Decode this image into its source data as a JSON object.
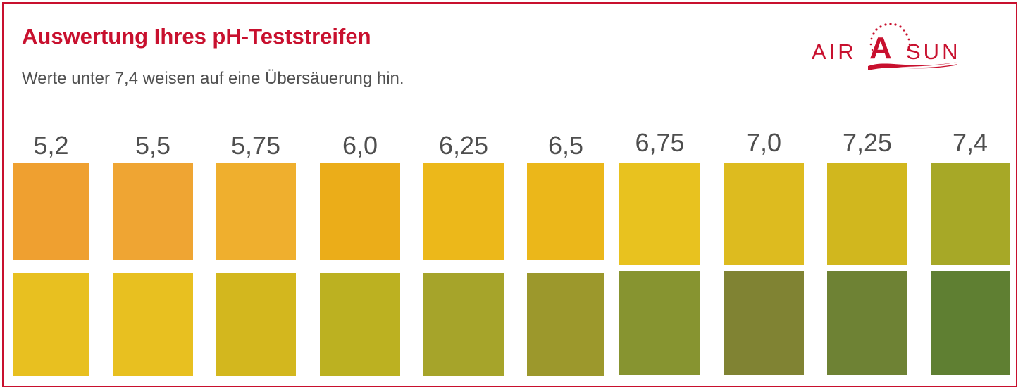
{
  "header": {
    "title": "Auswertung Ihres pH-Teststreifen",
    "subtitle": "Werte unter 7,4 weisen auf eine Übersäuerung hin."
  },
  "logo": {
    "left": "AIR",
    "middle": "A",
    "right": "SUN"
  },
  "chart_data": {
    "type": "table",
    "columns": [
      {
        "label": "5,2",
        "ph": 5.2,
        "top_color": "#efa030",
        "bottom_color": "#e8c020"
      },
      {
        "label": "5,5",
        "ph": 5.5,
        "top_color": "#efa533",
        "bottom_color": "#e8c020"
      },
      {
        "label": "5,75",
        "ph": 5.75,
        "top_color": "#efaf2e",
        "bottom_color": "#d3b71e"
      },
      {
        "label": "6,0",
        "ph": 6.0,
        "top_color": "#ebad19",
        "bottom_color": "#bcb121"
      },
      {
        "label": "6,25",
        "ph": 6.25,
        "top_color": "#ecb81a",
        "bottom_color": "#a6a42a"
      },
      {
        "label": "6,5",
        "ph": 6.5,
        "top_color": "#ebb71a",
        "bottom_color": "#9c982c"
      },
      {
        "label": "6,75",
        "ph": 6.75,
        "top_color": "#e8c21f",
        "bottom_color": "#879430"
      },
      {
        "label": "7,0",
        "ph": 7.0,
        "top_color": "#ddbb1f",
        "bottom_color": "#808333"
      },
      {
        "label": "7,25",
        "ph": 7.25,
        "top_color": "#d1b71e",
        "bottom_color": "#6e8234"
      },
      {
        "label": "7,4",
        "ph": 7.4,
        "top_color": "#a7a827",
        "bottom_color": "#5f7f32"
      }
    ]
  }
}
